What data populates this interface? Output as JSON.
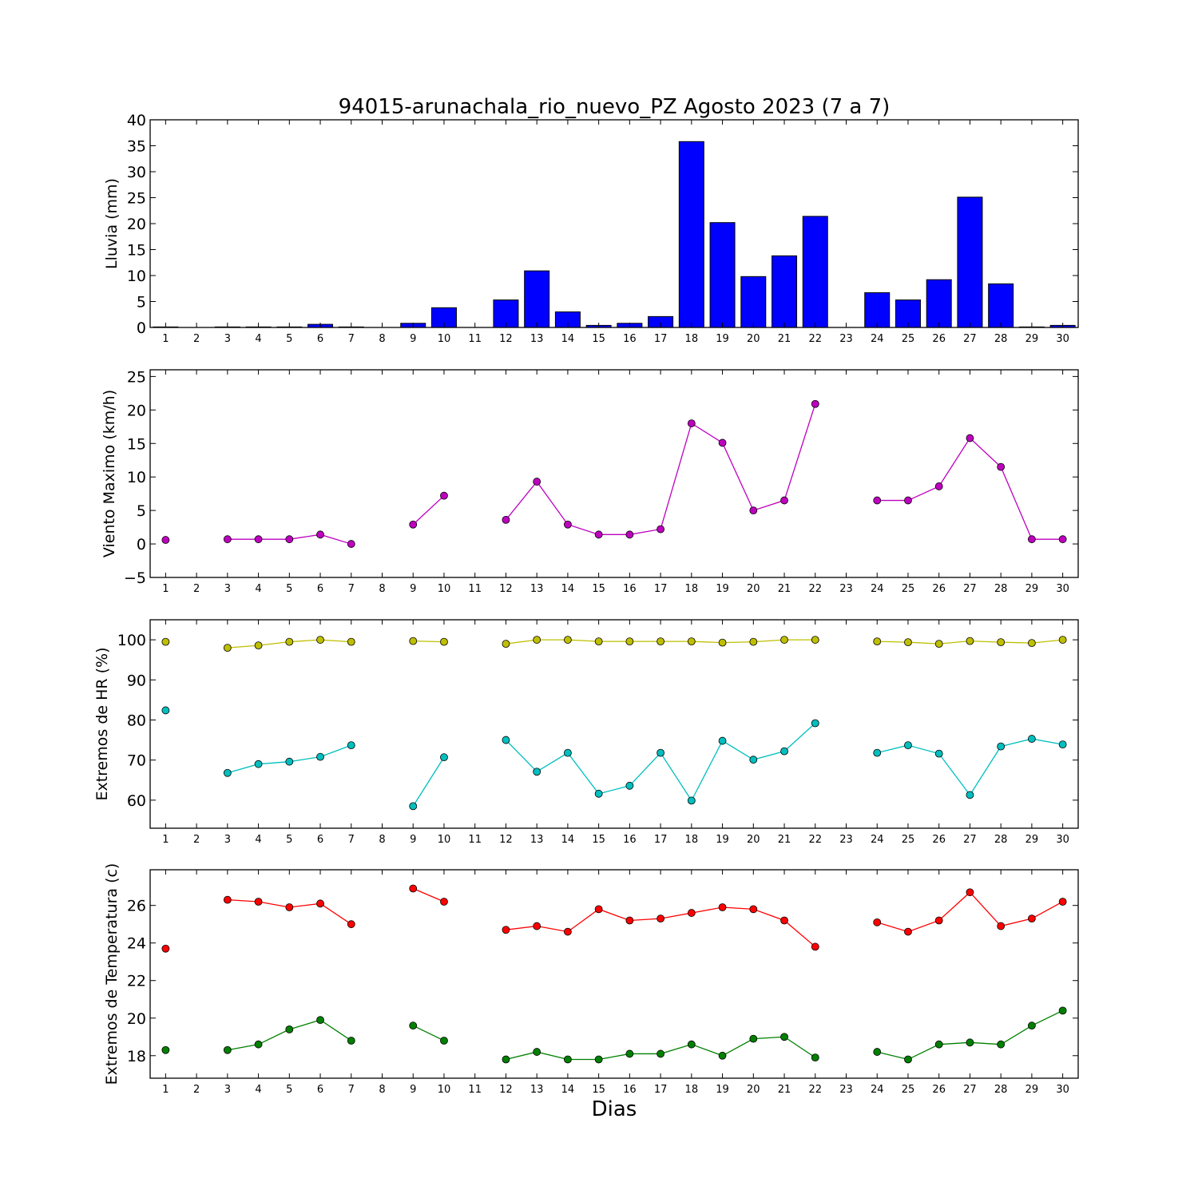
{
  "chart_data": {
    "title": "94015-arunachala_rio_nuevo_PZ Agosto 2023  (7 a 7)",
    "xlabel": "Dias",
    "days": [
      1,
      2,
      3,
      4,
      5,
      6,
      7,
      8,
      9,
      10,
      11,
      12,
      13,
      14,
      15,
      16,
      17,
      18,
      19,
      20,
      21,
      22,
      23,
      24,
      25,
      26,
      27,
      28,
      29,
      30
    ],
    "panels": [
      {
        "type": "bar",
        "ylabel": "Lluvia (mm)",
        "ylim": [
          0,
          40
        ],
        "yticks": [
          "0",
          "5",
          "10",
          "15",
          "20",
          "25",
          "30",
          "35",
          "40"
        ],
        "ytick_values": [
          0,
          5,
          10,
          15,
          20,
          25,
          30,
          35,
          40
        ],
        "series": [
          {
            "color": "#0000ff",
            "values": [
              0.1,
              null,
              0.1,
              0.1,
              0.1,
              0.6,
              0.1,
              null,
              0.8,
              3.8,
              null,
              5.3,
              10.9,
              3.0,
              0.4,
              0.8,
              2.1,
              35.8,
              20.2,
              9.8,
              13.8,
              21.4,
              null,
              6.7,
              5.3,
              9.2,
              25.1,
              8.4,
              0.1,
              0.4
            ]
          }
        ]
      },
      {
        "type": "line",
        "ylabel": "Viento Maximo (km/h)",
        "ylim": [
          -5,
          26
        ],
        "yticks": [
          "−5",
          "0",
          "5",
          "10",
          "15",
          "20",
          "25"
        ],
        "ytick_values": [
          -5,
          0,
          5,
          10,
          15,
          20,
          25
        ],
        "series": [
          {
            "color": "#bf00bf",
            "values": [
              0.6,
              null,
              0.7,
              0.7,
              0.7,
              1.4,
              0.0,
              null,
              2.9,
              7.2,
              null,
              3.6,
              9.3,
              2.9,
              1.4,
              1.4,
              2.2,
              18.0,
              15.1,
              5.0,
              6.5,
              20.9,
              null,
              6.5,
              6.5,
              8.6,
              15.8,
              11.5,
              0.7,
              0.7
            ]
          }
        ]
      },
      {
        "type": "line",
        "ylabel": "Extremos de HR (%)",
        "ylim": [
          53,
          105
        ],
        "yticks": [
          "60",
          "70",
          "80",
          "90",
          "100"
        ],
        "ytick_values": [
          60,
          70,
          80,
          90,
          100
        ],
        "series": [
          {
            "color": "#bfbf00",
            "values": [
              99.5,
              null,
              98.0,
              98.6,
              99.5,
              100.0,
              99.5,
              null,
              99.7,
              99.5,
              null,
              99.0,
              100.0,
              100.0,
              99.6,
              99.6,
              99.6,
              99.6,
              99.3,
              99.5,
              100.0,
              100.0,
              null,
              99.6,
              99.4,
              99.0,
              99.7,
              99.4,
              99.2,
              100.0
            ]
          },
          {
            "color": "#00bfbf",
            "values": [
              82.4,
              null,
              66.8,
              69.0,
              69.6,
              70.8,
              73.7,
              null,
              58.5,
              70.7,
              null,
              75.0,
              67.1,
              71.8,
              61.6,
              63.6,
              71.8,
              59.9,
              74.8,
              70.1,
              72.2,
              79.2,
              null,
              71.8,
              73.7,
              71.6,
              61.3,
              73.4,
              75.3,
              73.9
            ]
          }
        ]
      },
      {
        "type": "line",
        "ylabel": "Extremos de Temperatura (c)",
        "ylim": [
          16.8,
          27.9
        ],
        "yticks": [
          "18",
          "20",
          "22",
          "24",
          "26"
        ],
        "ytick_values": [
          18,
          20,
          22,
          24,
          26
        ],
        "series": [
          {
            "color": "#ff0000",
            "values": [
              23.7,
              null,
              26.3,
              26.2,
              25.9,
              26.1,
              25.0,
              null,
              26.9,
              26.2,
              null,
              24.7,
              24.9,
              24.6,
              25.8,
              25.2,
              25.3,
              25.6,
              25.9,
              25.8,
              25.2,
              23.8,
              null,
              25.1,
              24.6,
              25.2,
              26.7,
              24.9,
              25.3,
              26.2
            ]
          },
          {
            "color": "#008000",
            "values": [
              18.3,
              null,
              18.3,
              18.6,
              19.4,
              19.9,
              18.8,
              null,
              19.6,
              18.8,
              null,
              17.8,
              18.2,
              17.8,
              17.8,
              18.1,
              18.1,
              18.6,
              18.0,
              18.9,
              19.0,
              17.9,
              null,
              18.2,
              17.8,
              18.6,
              18.7,
              18.6,
              19.6,
              20.4
            ]
          }
        ]
      }
    ]
  }
}
